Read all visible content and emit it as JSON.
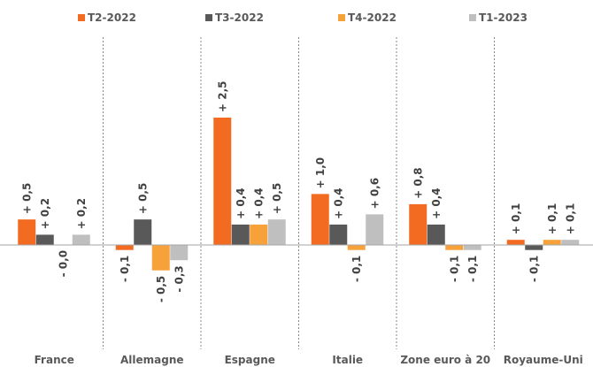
{
  "chart_data": {
    "type": "bar",
    "categories": [
      "France",
      "Allemagne",
      "Espagne",
      "Italie",
      "Zone euro à 20",
      "Royaume-Uni"
    ],
    "series": [
      {
        "name": "T2-2022",
        "color": "#f26b21",
        "values": [
          0.5,
          -0.1,
          2.5,
          1.0,
          0.8,
          0.1
        ],
        "value_labels": [
          "+ 0,5",
          "- 0,1",
          "+ 2,5",
          "+ 1,0",
          "+ 0,8",
          "+ 0,1"
        ]
      },
      {
        "name": "T3-2022",
        "color": "#595959",
        "values": [
          0.2,
          0.5,
          0.4,
          0.4,
          0.4,
          -0.1
        ],
        "value_labels": [
          "+ 0,2",
          "+ 0,5",
          "+ 0,4",
          "+ 0,4",
          "+ 0,4",
          "- 0,1"
        ]
      },
      {
        "name": "T4-2022",
        "color": "#f7a13a",
        "values": [
          -0.0,
          -0.5,
          0.4,
          -0.1,
          -0.1,
          0.1
        ],
        "value_labels": [
          "- 0,0",
          "- 0,5",
          "+ 0,4",
          "- 0,1",
          "- 0,1",
          "+ 0,1"
        ]
      },
      {
        "name": "T1-2023",
        "color": "#bfbfbf",
        "values": [
          0.2,
          -0.3,
          0.5,
          0.6,
          -0.1,
          0.1
        ],
        "value_labels": [
          "+ 0,2",
          "- 0,3",
          "+ 0,5",
          "+ 0,6",
          "- 0,1",
          "+ 0,1"
        ]
      }
    ],
    "ylim": [
      -2.05,
      4.08
    ]
  }
}
